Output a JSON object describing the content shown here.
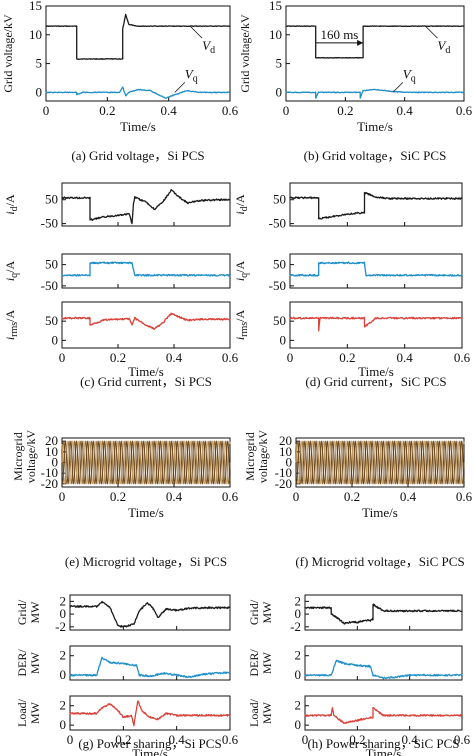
{
  "colors": {
    "black": "#1a1a1a",
    "blue": "#1f8fc8",
    "red": "#d9413a",
    "tan": "#c8a26a",
    "dark": "#333333"
  },
  "chart_data": [
    {
      "id": "a",
      "type": "line",
      "caption": "(a) Grid voltage，Si PCS",
      "xlabel": "Time/s",
      "ylabel": "Grid voltage/kV",
      "xlim": [
        0,
        0.6
      ],
      "ylim": [
        -1.5,
        15
      ],
      "xticks": [
        0,
        0.2,
        0.4,
        0.6
      ],
      "yticks": [
        0,
        5,
        10,
        15
      ],
      "labels": [
        {
          "text": "V",
          "sub": "d"
        },
        {
          "text": "V",
          "sub": "q"
        }
      ],
      "series": [
        {
          "color": "black",
          "x": [
            0,
            0.1,
            0.1,
            0.25,
            0.25,
            0.26,
            0.27,
            0.3,
            0.6
          ],
          "y": [
            11.5,
            11.5,
            5.8,
            5.8,
            11,
            13.5,
            11.8,
            11.5,
            11.5
          ]
        },
        {
          "color": "blue",
          "x": [
            0,
            0.1,
            0.1,
            0.12,
            0.2,
            0.24,
            0.25,
            0.26,
            0.27,
            0.3,
            0.34,
            0.37,
            0.39,
            0.42,
            0.46,
            0.5,
            0.6
          ],
          "y": [
            0,
            0,
            -0.4,
            0,
            0,
            0,
            0.9,
            -0.6,
            0,
            0.5,
            0.3,
            -0.5,
            -1,
            -0.4,
            0.3,
            0,
            0
          ]
        }
      ]
    },
    {
      "id": "b",
      "type": "line",
      "caption": "(b) Grid voltage，SiC PCS",
      "xlabel": "Time/s",
      "ylabel": "Grid voltage/kV",
      "xlim": [
        0,
        0.6
      ],
      "ylim": [
        -1.5,
        15
      ],
      "xticks": [
        0,
        0.2,
        0.4,
        0.6
      ],
      "yticks": [
        0,
        5,
        10,
        15
      ],
      "labels": [
        {
          "text": "V",
          "sub": "d"
        },
        {
          "text": "V",
          "sub": "q"
        },
        {
          "text": "160 ms",
          "sub": ""
        }
      ],
      "series": [
        {
          "color": "black",
          "x": [
            0,
            0.1,
            0.1,
            0.26,
            0.26,
            0.6
          ],
          "y": [
            11.5,
            11.5,
            6,
            6,
            11.5,
            11.5
          ]
        },
        {
          "color": "blue",
          "x": [
            0,
            0.1,
            0.1,
            0.11,
            0.25,
            0.25,
            0.26,
            0.3,
            0.35,
            0.4,
            0.6
          ],
          "y": [
            0,
            0,
            -1,
            0,
            0,
            -1,
            0.3,
            0.5,
            0.2,
            0,
            0
          ]
        }
      ]
    },
    {
      "id": "c",
      "type": "line",
      "caption": "(c) Grid current，Si PCS",
      "xlabel": "Time/s",
      "xlim": [
        0,
        0.6
      ],
      "xticks": [
        0,
        0.2,
        0.4,
        0.6
      ],
      "panels": [
        {
          "ylabel": "i",
          "ysub": "d",
          "yunit": "/A",
          "ylim": [
            -60,
            120
          ],
          "yticks": [
            -50,
            50
          ],
          "color": "black",
          "x": [
            0,
            0.1,
            0.1,
            0.15,
            0.2,
            0.24,
            0.25,
            0.255,
            0.26,
            0.3,
            0.33,
            0.36,
            0.39,
            0.42,
            0.45,
            0.48,
            0.52,
            0.56,
            0.6
          ],
          "y": [
            58,
            58,
            -35,
            -22,
            -15,
            -10,
            -50,
            30,
            60,
            40,
            10,
            40,
            90,
            60,
            35,
            45,
            48,
            50,
            50
          ]
        },
        {
          "ylabel": "i",
          "ysub": "q",
          "yunit": "/A",
          "ylim": [
            -60,
            100
          ],
          "yticks": [
            -50,
            50
          ],
          "color": "blue",
          "x": [
            0,
            0.1,
            0.1,
            0.25,
            0.26,
            0.6
          ],
          "y": [
            0,
            0,
            58,
            58,
            0,
            0
          ]
        },
        {
          "ylabel": "i",
          "ysub": "rms",
          "yunit": "/A",
          "ylim": [
            -20,
            100
          ],
          "yticks": [
            0,
            50
          ],
          "color": "red",
          "x": [
            0,
            0.1,
            0.1,
            0.15,
            0.2,
            0.24,
            0.25,
            0.26,
            0.3,
            0.33,
            0.36,
            0.39,
            0.42,
            0.45,
            0.5,
            0.6
          ],
          "y": [
            58,
            58,
            40,
            53,
            55,
            56,
            40,
            58,
            40,
            30,
            45,
            70,
            60,
            52,
            55,
            55
          ]
        }
      ]
    },
    {
      "id": "d",
      "type": "line",
      "caption": "(d) Grid current，SiC PCS",
      "xlabel": "Time/s",
      "xlim": [
        0,
        0.6
      ],
      "xticks": [
        0,
        0.2,
        0.4,
        0.6
      ],
      "panels": [
        {
          "ylabel": "i",
          "ysub": "d",
          "yunit": "/A",
          "ylim": [
            -60,
            120
          ],
          "yticks": [
            -50,
            50
          ],
          "color": "black",
          "x": [
            0,
            0.1,
            0.1,
            0.15,
            0.2,
            0.25,
            0.26,
            0.26,
            0.3,
            0.35,
            0.4,
            0.6
          ],
          "y": [
            58,
            58,
            -30,
            -20,
            -10,
            -5,
            -5,
            80,
            60,
            55,
            55,
            55
          ]
        },
        {
          "ylabel": "i",
          "ysub": "q",
          "yunit": "/A",
          "ylim": [
            -60,
            100
          ],
          "yticks": [
            -50,
            50
          ],
          "color": "blue",
          "x": [
            0,
            0.1,
            0.1,
            0.26,
            0.265,
            0.6
          ],
          "y": [
            0,
            0,
            58,
            58,
            0,
            0
          ]
        },
        {
          "ylabel": "i",
          "ysub": "rms",
          "yunit": "/A",
          "ylim": [
            -20,
            100
          ],
          "yticks": [
            0,
            50
          ],
          "color": "red",
          "x": [
            0,
            0.1,
            0.1,
            0.105,
            0.11,
            0.25,
            0.26,
            0.26,
            0.3,
            0.6
          ],
          "y": [
            58,
            58,
            25,
            58,
            58,
            58,
            58,
            35,
            58,
            58
          ]
        }
      ]
    },
    {
      "id": "e",
      "type": "line",
      "caption": "(e) Microgrid voltage，Si PCS",
      "xlabel": "Time/s",
      "ylabel": "Microgrid voltage/kV",
      "xlim": [
        0,
        0.6
      ],
      "ylim": [
        -23,
        23
      ],
      "xticks": [
        0,
        0.2,
        0.4,
        0.6
      ],
      "yticks": [
        -20,
        -10,
        0,
        10,
        20
      ],
      "series": [
        {
          "name": "",
          "color": "tan",
          "waveform": "three-phase sinusoid",
          "amplitude": 20,
          "frequency_hz": 50
        }
      ]
    },
    {
      "id": "f",
      "type": "line",
      "caption": "(f) Microgrid voltage，SiC PCS",
      "xlabel": "Time/s",
      "ylabel": "Microgrid voltage/kV",
      "xlim": [
        0,
        0.6
      ],
      "ylim": [
        -23,
        23
      ],
      "xticks": [
        0,
        0.2,
        0.4,
        0.6
      ],
      "yticks": [
        -20,
        -10,
        0,
        10,
        20
      ],
      "series": [
        {
          "name": "",
          "color": "tan",
          "waveform": "three-phase sinusoid",
          "amplitude": 20,
          "frequency_hz": 50
        }
      ]
    },
    {
      "id": "g",
      "type": "line",
      "caption": "(g) Power sharing，Si PCS",
      "xlabel": "Time/s",
      "xlim": [
        0,
        0.6
      ],
      "xticks": [
        0,
        0.2,
        0.4,
        0.6
      ],
      "panels": [
        {
          "ylabel": "Grid/",
          "yunit": "MW",
          "ylim": [
            -2.5,
            3
          ],
          "yticks": [
            -2,
            0,
            2
          ],
          "color": "black",
          "x": [
            0,
            0.1,
            0.12,
            0.15,
            0.18,
            0.2,
            0.24,
            0.25,
            0.26,
            0.29,
            0.31,
            0.33,
            0.36,
            0.4,
            0.45,
            0.5,
            0.6
          ],
          "y": [
            1.2,
            1.2,
            2,
            1,
            -1.8,
            -2,
            -1.6,
            -0.5,
            0.5,
            1.8,
            1,
            -0.5,
            0.8,
            0.6,
            0.9,
            1,
            1
          ]
        },
        {
          "ylabel": "DER/",
          "yunit": "MW",
          "ylim": [
            -0.5,
            3
          ],
          "yticks": [
            0,
            2
          ],
          "color": "blue",
          "x": [
            0,
            0.1,
            0.12,
            0.15,
            0.2,
            0.25,
            0.26,
            0.3,
            0.35,
            0.4,
            0.45,
            0.5,
            0.6
          ],
          "y": [
            0,
            0,
            1.8,
            1.3,
            1.2,
            1,
            0,
            -0.1,
            0.2,
            0,
            -0.2,
            0.1,
            0.3
          ]
        },
        {
          "ylabel": "Load/",
          "yunit": "MW",
          "ylim": [
            -0.5,
            3
          ],
          "yticks": [
            0,
            2
          ],
          "color": "red",
          "x": [
            0,
            0.1,
            0.12,
            0.15,
            0.18,
            0.2,
            0.23,
            0.24,
            0.25,
            0.255,
            0.27,
            0.3,
            0.33,
            0.36,
            0.4,
            0.45,
            0.5,
            0.6
          ],
          "y": [
            1.2,
            1.2,
            1.8,
            2.2,
            1.5,
            0.8,
            1,
            0,
            1.8,
            2.5,
            1.5,
            0.8,
            0.6,
            1.2,
            1,
            1,
            1,
            1
          ]
        }
      ]
    },
    {
      "id": "h",
      "type": "line",
      "caption": "(h) Power sharing，SiC PCS",
      "xlabel": "Time/s",
      "xlim": [
        0,
        0.6
      ],
      "xticks": [
        0,
        0.2,
        0.4,
        0.6
      ],
      "panels": [
        {
          "ylabel": "Grid/",
          "yunit": "MW",
          "ylim": [
            -2.5,
            3
          ],
          "yticks": [
            -2,
            0,
            2
          ],
          "color": "black",
          "x": [
            0,
            0.1,
            0.1,
            0.12,
            0.15,
            0.18,
            0.2,
            0.23,
            0.25,
            0.26,
            0.26,
            0.3,
            0.6
          ],
          "y": [
            1,
            1,
            0,
            -0.5,
            -1.5,
            -1.2,
            -1.3,
            -1,
            -1,
            -0.8,
            1.5,
            0.5,
            0.5
          ]
        },
        {
          "ylabel": "DER/",
          "yunit": "MW",
          "ylim": [
            -0.5,
            3
          ],
          "yticks": [
            0,
            2
          ],
          "color": "blue",
          "x": [
            0,
            0.1,
            0.12,
            0.15,
            0.2,
            0.25,
            0.26,
            0.3,
            0.35,
            0.4,
            0.45,
            0.6
          ],
          "y": [
            0,
            0,
            1.5,
            1.2,
            1,
            0.9,
            0,
            -0.3,
            -0.2,
            0,
            0,
            0
          ]
        },
        {
          "ylabel": "Load/",
          "yunit": "MW",
          "ylim": [
            -0.5,
            3
          ],
          "yticks": [
            0,
            2
          ],
          "color": "red",
          "x": [
            0,
            0.1,
            0.105,
            0.11,
            0.15,
            0.2,
            0.25,
            0.26,
            0.26,
            0.3,
            0.35,
            0.6
          ],
          "y": [
            1,
            1,
            1.8,
            1,
            0.2,
            0.5,
            0.8,
            0.8,
            1.8,
            1,
            1,
            1
          ]
        }
      ]
    }
  ]
}
